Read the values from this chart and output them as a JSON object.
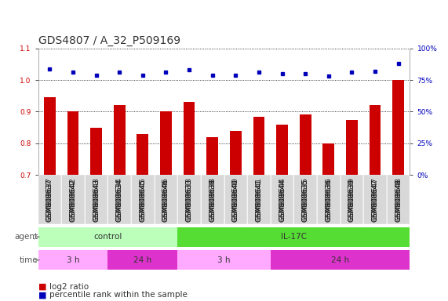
{
  "title": "GDS4807 / A_32_P509169",
  "samples": [
    "GSM808637",
    "GSM808642",
    "GSM808643",
    "GSM808634",
    "GSM808645",
    "GSM808646",
    "GSM808633",
    "GSM808638",
    "GSM808640",
    "GSM808641",
    "GSM808644",
    "GSM808635",
    "GSM808636",
    "GSM808639",
    "GSM808647",
    "GSM808648"
  ],
  "log2_ratio": [
    0.945,
    0.9,
    0.85,
    0.92,
    0.83,
    0.9,
    0.93,
    0.82,
    0.84,
    0.885,
    0.86,
    0.89,
    0.8,
    0.875,
    0.92,
    1.0
  ],
  "percentile": [
    84,
    81,
    79,
    81,
    79,
    81,
    83,
    79,
    79,
    81,
    80,
    80,
    78,
    81,
    82,
    88
  ],
  "ylim_left": [
    0.7,
    1.1
  ],
  "ylim_right": [
    0,
    100
  ],
  "yticks_left": [
    0.7,
    0.8,
    0.9,
    1.0,
    1.1
  ],
  "yticks_right": [
    0,
    25,
    50,
    75,
    100
  ],
  "bar_color": "#cc0000",
  "dot_color": "#0000bb",
  "grid_color": "#000000",
  "agent_row": [
    {
      "label": "control",
      "start": 0,
      "end": 6,
      "color": "#bbffbb"
    },
    {
      "label": "IL-17C",
      "start": 6,
      "end": 16,
      "color": "#55dd33"
    }
  ],
  "time_row": [
    {
      "label": "3 h",
      "start": 0,
      "end": 3,
      "color": "#ffaaff"
    },
    {
      "label": "24 h",
      "start": 3,
      "end": 6,
      "color": "#dd33cc"
    },
    {
      "label": "3 h",
      "start": 6,
      "end": 10,
      "color": "#ffaaff"
    },
    {
      "label": "24 h",
      "start": 10,
      "end": 16,
      "color": "#dd33cc"
    }
  ],
  "bg_color": "#ffffff",
  "title_fontsize": 10,
  "tick_fontsize": 6.5,
  "label_fontsize": 7.5,
  "row_label_fontsize": 7.5,
  "legend_fontsize": 7.5
}
